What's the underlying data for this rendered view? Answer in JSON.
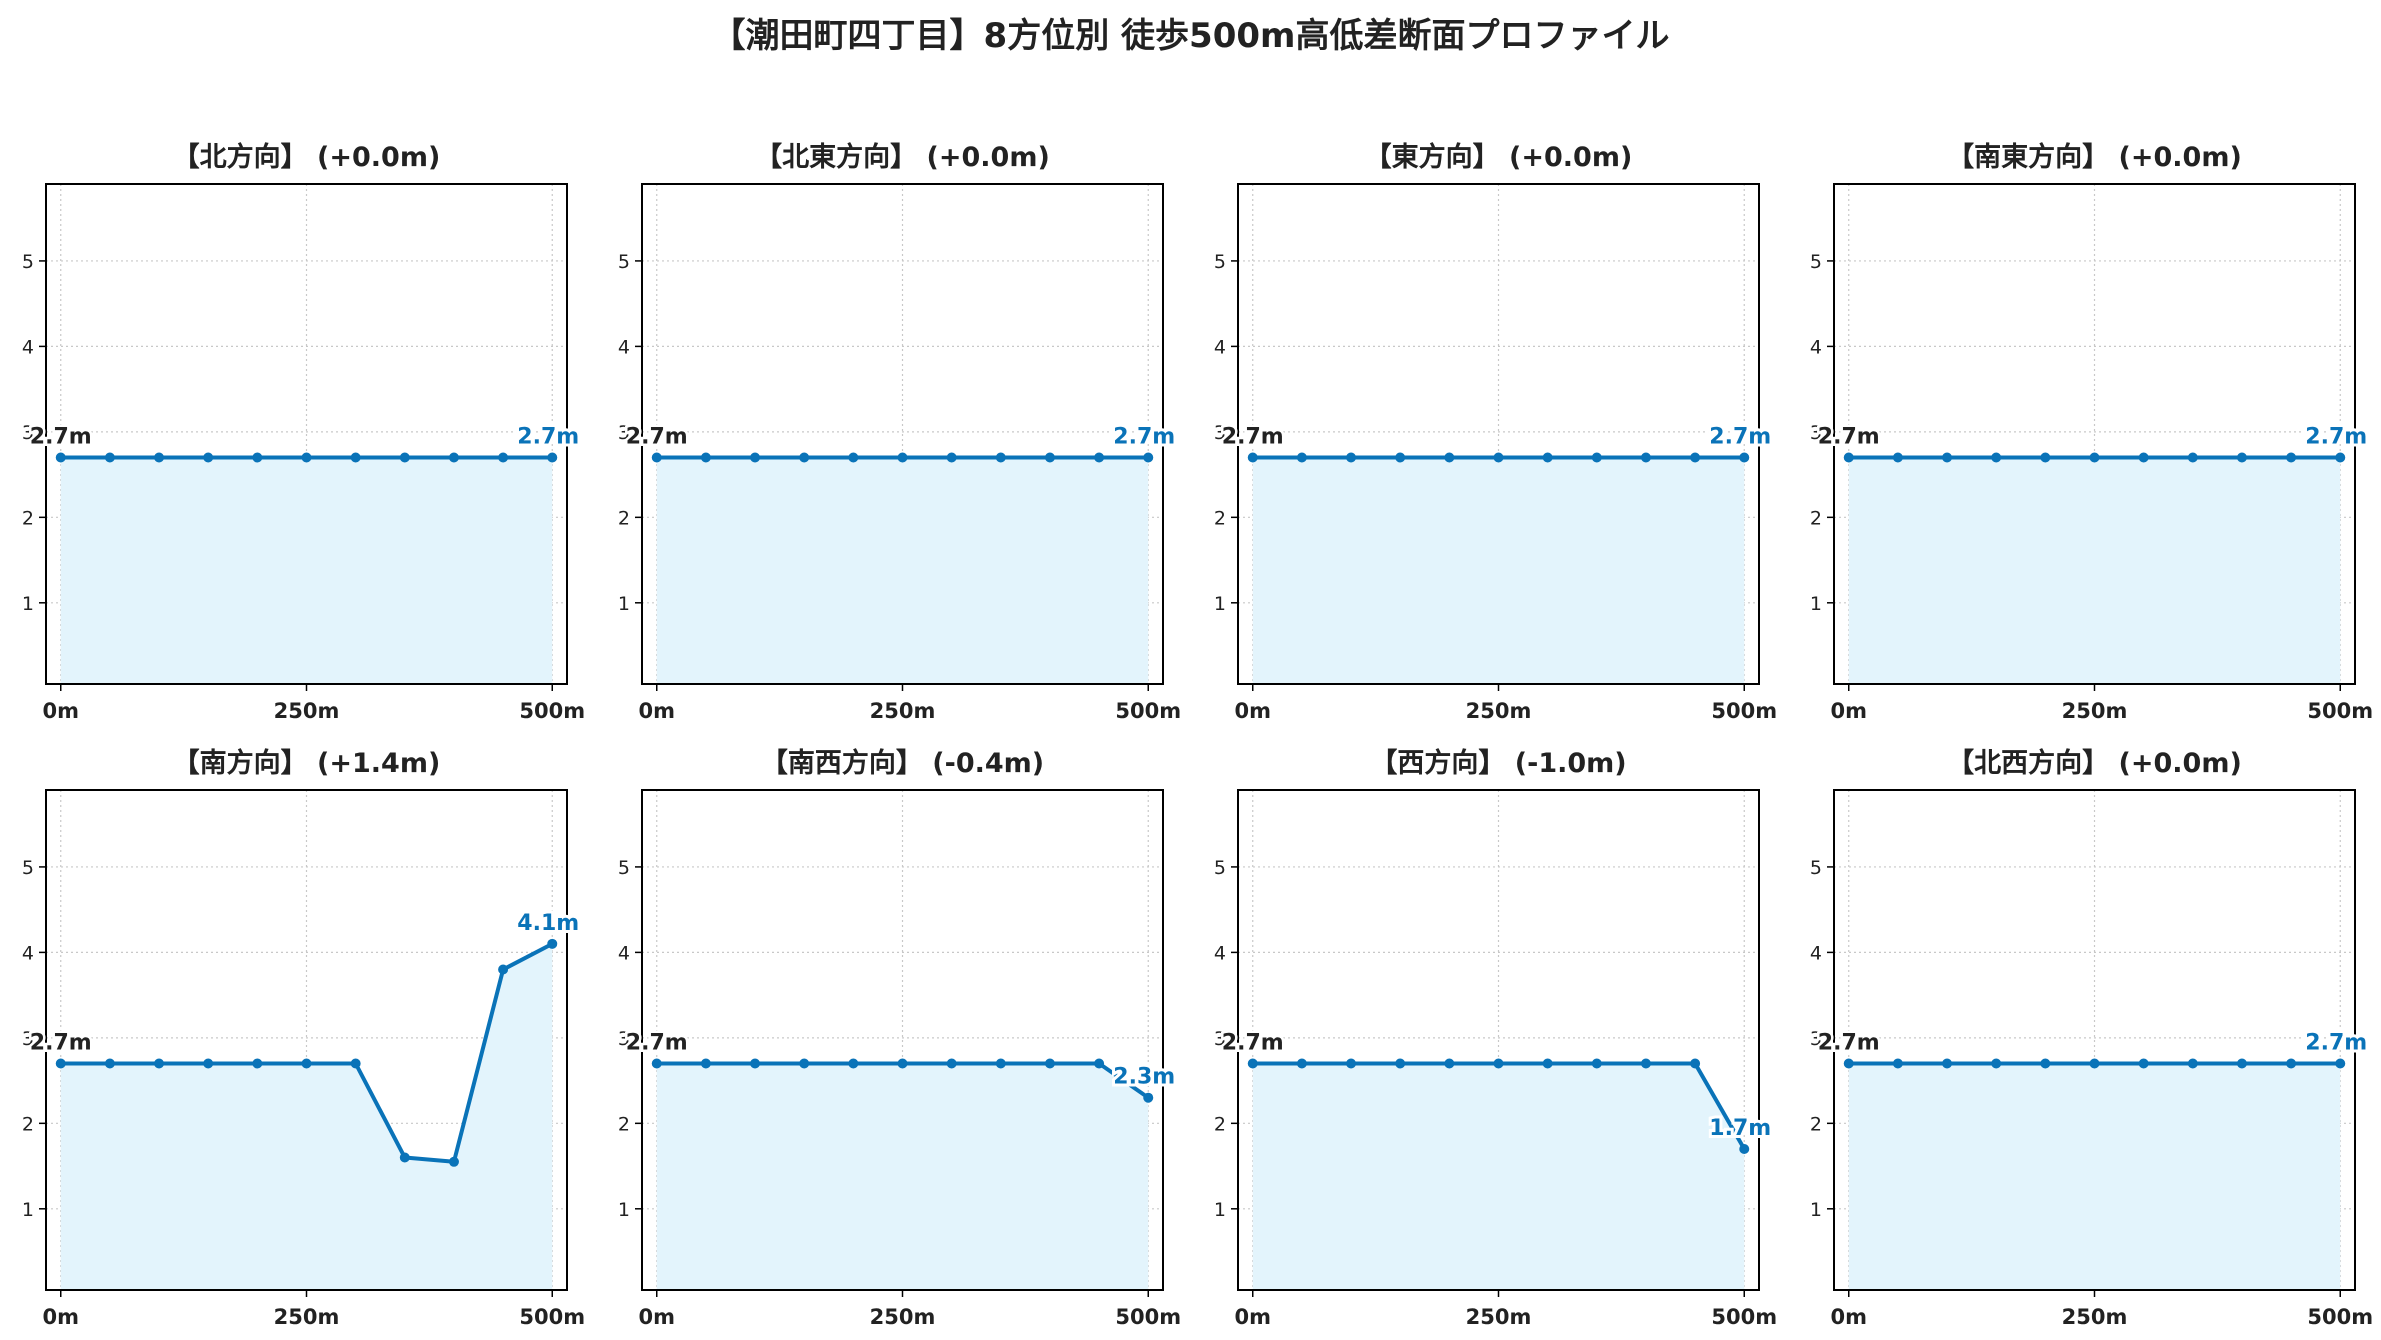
{
  "title": "【潮田町四丁目】8方位別 徒歩500m高低差断面プロファイル",
  "colors": {
    "line": "#0a73b8",
    "fill": "#e3f4fc",
    "grid": "#c8c8c8",
    "axis": "#000000",
    "start_label": "#222222",
    "end_label": "#0a73b8"
  },
  "chart_data": [
    {
      "type": "line",
      "title": "【北方向】 (+0.0m)",
      "x": [
        0,
        50,
        100,
        150,
        200,
        250,
        300,
        350,
        400,
        450,
        500
      ],
      "values": [
        2.7,
        2.7,
        2.7,
        2.7,
        2.7,
        2.7,
        2.7,
        2.7,
        2.7,
        2.7,
        2.7
      ],
      "xticks": [
        "0m",
        "250m",
        "500m"
      ],
      "yticks": [
        "1",
        "2",
        "3",
        "4",
        "5"
      ],
      "xlim": [
        -15,
        515
      ],
      "ylim": [
        0.05,
        5.9
      ],
      "start_label": "2.7m",
      "end_label": "2.7m",
      "grid": true
    },
    {
      "type": "line",
      "title": "【北東方向】 (+0.0m)",
      "x": [
        0,
        50,
        100,
        150,
        200,
        250,
        300,
        350,
        400,
        450,
        500
      ],
      "values": [
        2.7,
        2.7,
        2.7,
        2.7,
        2.7,
        2.7,
        2.7,
        2.7,
        2.7,
        2.7,
        2.7
      ],
      "xticks": [
        "0m",
        "250m",
        "500m"
      ],
      "yticks": [
        "1",
        "2",
        "3",
        "4",
        "5"
      ],
      "xlim": [
        -15,
        515
      ],
      "ylim": [
        0.05,
        5.9
      ],
      "start_label": "2.7m",
      "end_label": "2.7m",
      "grid": true
    },
    {
      "type": "line",
      "title": "【東方向】 (+0.0m)",
      "x": [
        0,
        50,
        100,
        150,
        200,
        250,
        300,
        350,
        400,
        450,
        500
      ],
      "values": [
        2.7,
        2.7,
        2.7,
        2.7,
        2.7,
        2.7,
        2.7,
        2.7,
        2.7,
        2.7,
        2.7
      ],
      "xticks": [
        "0m",
        "250m",
        "500m"
      ],
      "yticks": [
        "1",
        "2",
        "3",
        "4",
        "5"
      ],
      "xlim": [
        -15,
        515
      ],
      "ylim": [
        0.05,
        5.9
      ],
      "start_label": "2.7m",
      "end_label": "2.7m",
      "grid": true
    },
    {
      "type": "line",
      "title": "【南東方向】 (+0.0m)",
      "x": [
        0,
        50,
        100,
        150,
        200,
        250,
        300,
        350,
        400,
        450,
        500
      ],
      "values": [
        2.7,
        2.7,
        2.7,
        2.7,
        2.7,
        2.7,
        2.7,
        2.7,
        2.7,
        2.7,
        2.7
      ],
      "xticks": [
        "0m",
        "250m",
        "500m"
      ],
      "yticks": [
        "1",
        "2",
        "3",
        "4",
        "5"
      ],
      "xlim": [
        -15,
        515
      ],
      "ylim": [
        0.05,
        5.9
      ],
      "start_label": "2.7m",
      "end_label": "2.7m",
      "grid": true
    },
    {
      "type": "line",
      "title": "【南方向】 (+1.4m)",
      "x": [
        0,
        50,
        100,
        150,
        200,
        250,
        300,
        350,
        400,
        450,
        500
      ],
      "values": [
        2.7,
        2.7,
        2.7,
        2.7,
        2.7,
        2.7,
        2.7,
        1.6,
        1.55,
        3.8,
        4.1
      ],
      "xticks": [
        "0m",
        "250m",
        "500m"
      ],
      "yticks": [
        "1",
        "2",
        "3",
        "4",
        "5"
      ],
      "xlim": [
        -15,
        515
      ],
      "ylim": [
        0.05,
        5.9
      ],
      "start_label": "2.7m",
      "end_label": "4.1m",
      "grid": true
    },
    {
      "type": "line",
      "title": "【南西方向】 (-0.4m)",
      "x": [
        0,
        50,
        100,
        150,
        200,
        250,
        300,
        350,
        400,
        450,
        500
      ],
      "values": [
        2.7,
        2.7,
        2.7,
        2.7,
        2.7,
        2.7,
        2.7,
        2.7,
        2.7,
        2.7,
        2.3
      ],
      "xticks": [
        "0m",
        "250m",
        "500m"
      ],
      "yticks": [
        "1",
        "2",
        "3",
        "4",
        "5"
      ],
      "xlim": [
        -15,
        515
      ],
      "ylim": [
        0.05,
        5.9
      ],
      "start_label": "2.7m",
      "end_label": "2.3m",
      "grid": true
    },
    {
      "type": "line",
      "title": "【西方向】 (-1.0m)",
      "x": [
        0,
        50,
        100,
        150,
        200,
        250,
        300,
        350,
        400,
        450,
        500
      ],
      "values": [
        2.7,
        2.7,
        2.7,
        2.7,
        2.7,
        2.7,
        2.7,
        2.7,
        2.7,
        2.7,
        1.7
      ],
      "xticks": [
        "0m",
        "250m",
        "500m"
      ],
      "yticks": [
        "1",
        "2",
        "3",
        "4",
        "5"
      ],
      "xlim": [
        -15,
        515
      ],
      "ylim": [
        0.05,
        5.9
      ],
      "start_label": "2.7m",
      "end_label": "1.7m",
      "grid": true
    },
    {
      "type": "line",
      "title": "【北西方向】 (+0.0m)",
      "x": [
        0,
        50,
        100,
        150,
        200,
        250,
        300,
        350,
        400,
        450,
        500
      ],
      "values": [
        2.7,
        2.7,
        2.7,
        2.7,
        2.7,
        2.7,
        2.7,
        2.7,
        2.7,
        2.7,
        2.7
      ],
      "xticks": [
        "0m",
        "250m",
        "500m"
      ],
      "yticks": [
        "1",
        "2",
        "3",
        "4",
        "5"
      ],
      "xlim": [
        -15,
        515
      ],
      "ylim": [
        0.05,
        5.9
      ],
      "start_label": "2.7m",
      "end_label": "2.7m",
      "grid": true
    }
  ]
}
